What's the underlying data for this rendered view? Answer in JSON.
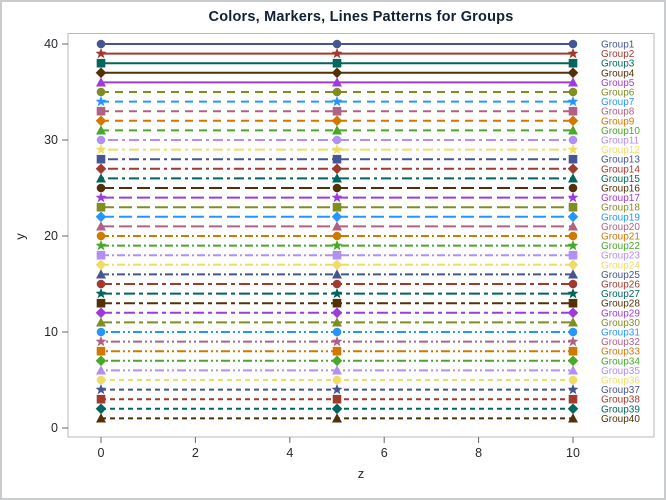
{
  "window": {
    "border_color": "#c9cbcd",
    "background": "#ffffff"
  },
  "chart_data": {
    "type": "line",
    "title": "Colors, Markers, Lines Patterns for Groups",
    "xlabel": "z",
    "ylabel": "y",
    "x_values": [
      0,
      5,
      10
    ],
    "xlim": [
      0,
      10
    ],
    "ylim": [
      0,
      40
    ],
    "xticks": [
      0,
      2,
      4,
      6,
      8,
      10
    ],
    "yticks": [
      0,
      10,
      20,
      30,
      40
    ],
    "grid": false,
    "legend_position": "curve-labels-right-inside",
    "title_color": "#112233",
    "tick_text_color": "#26292e",
    "tick_mark_color": "#63676b",
    "frame_color": "#b7babc",
    "plot_background": "#ffffff",
    "marker_cycle": [
      "circle",
      "star",
      "square",
      "diamond",
      "triangle"
    ],
    "color_cycle": [
      "#445694",
      "#A23A2E",
      "#01665E",
      "#543005",
      "#9D3CDB",
      "#7F8E1F",
      "#2597FA",
      "#B26084",
      "#D17800",
      "#47A82A",
      "#B38EF3",
      "#F1DC63"
    ],
    "pattern_cycle": [
      "solid",
      "dash",
      "shortdash-longdash",
      "longdash",
      "dashdot",
      "longdash-shortdash",
      "dot-dot-dash",
      "shortdash"
    ],
    "series": [
      {
        "label": "Group1",
        "y": 40,
        "color": "#445694",
        "marker": "circle",
        "pattern": "solid"
      },
      {
        "label": "Group2",
        "y": 39,
        "color": "#A23A2E",
        "marker": "star",
        "pattern": "solid"
      },
      {
        "label": "Group3",
        "y": 38,
        "color": "#01665E",
        "marker": "square",
        "pattern": "solid"
      },
      {
        "label": "Group4",
        "y": 37,
        "color": "#543005",
        "marker": "diamond",
        "pattern": "solid"
      },
      {
        "label": "Group5",
        "y": 36,
        "color": "#9D3CDB",
        "marker": "triangle",
        "pattern": "solid"
      },
      {
        "label": "Group6",
        "y": 35,
        "color": "#7F8E1F",
        "marker": "circle",
        "pattern": "dash"
      },
      {
        "label": "Group7",
        "y": 34,
        "color": "#2597FA",
        "marker": "star",
        "pattern": "dash"
      },
      {
        "label": "Group8",
        "y": 33,
        "color": "#B26084",
        "marker": "square",
        "pattern": "dash"
      },
      {
        "label": "Group9",
        "y": 32,
        "color": "#D17800",
        "marker": "diamond",
        "pattern": "dash"
      },
      {
        "label": "Group10",
        "y": 31,
        "color": "#47A82A",
        "marker": "triangle",
        "pattern": "dash"
      },
      {
        "label": "Group11",
        "y": 30,
        "color": "#B38EF3",
        "marker": "circle",
        "pattern": "shortdash-longdash"
      },
      {
        "label": "Group12",
        "y": 29,
        "color": "#F1DC63",
        "marker": "star",
        "pattern": "shortdash-longdash"
      },
      {
        "label": "Group13",
        "y": 28,
        "color": "#445694",
        "marker": "square",
        "pattern": "shortdash-longdash"
      },
      {
        "label": "Group14",
        "y": 27,
        "color": "#A23A2E",
        "marker": "diamond",
        "pattern": "shortdash-longdash"
      },
      {
        "label": "Group15",
        "y": 26,
        "color": "#01665E",
        "marker": "triangle",
        "pattern": "shortdash-longdash"
      },
      {
        "label": "Group16",
        "y": 25,
        "color": "#543005",
        "marker": "circle",
        "pattern": "longdash"
      },
      {
        "label": "Group17",
        "y": 24,
        "color": "#9D3CDB",
        "marker": "star",
        "pattern": "longdash"
      },
      {
        "label": "Group18",
        "y": 23,
        "color": "#7F8E1F",
        "marker": "square",
        "pattern": "longdash"
      },
      {
        "label": "Group19",
        "y": 22,
        "color": "#2597FA",
        "marker": "diamond",
        "pattern": "longdash"
      },
      {
        "label": "Group20",
        "y": 21,
        "color": "#B26084",
        "marker": "triangle",
        "pattern": "longdash"
      },
      {
        "label": "Group21",
        "y": 20,
        "color": "#D17800",
        "marker": "circle",
        "pattern": "dashdot"
      },
      {
        "label": "Group22",
        "y": 19,
        "color": "#47A82A",
        "marker": "star",
        "pattern": "dashdot"
      },
      {
        "label": "Group23",
        "y": 18,
        "color": "#B38EF3",
        "marker": "square",
        "pattern": "dashdot"
      },
      {
        "label": "Group24",
        "y": 17,
        "color": "#F1DC63",
        "marker": "diamond",
        "pattern": "dashdot"
      },
      {
        "label": "Group25",
        "y": 16,
        "color": "#445694",
        "marker": "triangle",
        "pattern": "dashdot"
      },
      {
        "label": "Group26",
        "y": 15,
        "color": "#A23A2E",
        "marker": "circle",
        "pattern": "longdash-shortdash"
      },
      {
        "label": "Group27",
        "y": 14,
        "color": "#01665E",
        "marker": "star",
        "pattern": "longdash-shortdash"
      },
      {
        "label": "Group28",
        "y": 13,
        "color": "#543005",
        "marker": "square",
        "pattern": "longdash-shortdash"
      },
      {
        "label": "Group29",
        "y": 12,
        "color": "#9D3CDB",
        "marker": "diamond",
        "pattern": "longdash-shortdash"
      },
      {
        "label": "Group30",
        "y": 11,
        "color": "#7F8E1F",
        "marker": "triangle",
        "pattern": "longdash-shortdash"
      },
      {
        "label": "Group31",
        "y": 10,
        "color": "#2597FA",
        "marker": "circle",
        "pattern": "dot-dot-dash"
      },
      {
        "label": "Group32",
        "y": 9,
        "color": "#B26084",
        "marker": "star",
        "pattern": "dot-dot-dash"
      },
      {
        "label": "Group33",
        "y": 8,
        "color": "#D17800",
        "marker": "square",
        "pattern": "dot-dot-dash"
      },
      {
        "label": "Group34",
        "y": 7,
        "color": "#47A82A",
        "marker": "diamond",
        "pattern": "dot-dot-dash"
      },
      {
        "label": "Group35",
        "y": 6,
        "color": "#B38EF3",
        "marker": "triangle",
        "pattern": "dot-dot-dash"
      },
      {
        "label": "Group36",
        "y": 5,
        "color": "#F1DC63",
        "marker": "circle",
        "pattern": "shortdash"
      },
      {
        "label": "Group37",
        "y": 4,
        "color": "#445694",
        "marker": "star",
        "pattern": "shortdash"
      },
      {
        "label": "Group38",
        "y": 3,
        "color": "#A23A2E",
        "marker": "square",
        "pattern": "shortdash"
      },
      {
        "label": "Group39",
        "y": 2,
        "color": "#01665E",
        "marker": "diamond",
        "pattern": "shortdash"
      },
      {
        "label": "Group40",
        "y": 1,
        "color": "#543005",
        "marker": "triangle",
        "pattern": "shortdash"
      }
    ]
  }
}
